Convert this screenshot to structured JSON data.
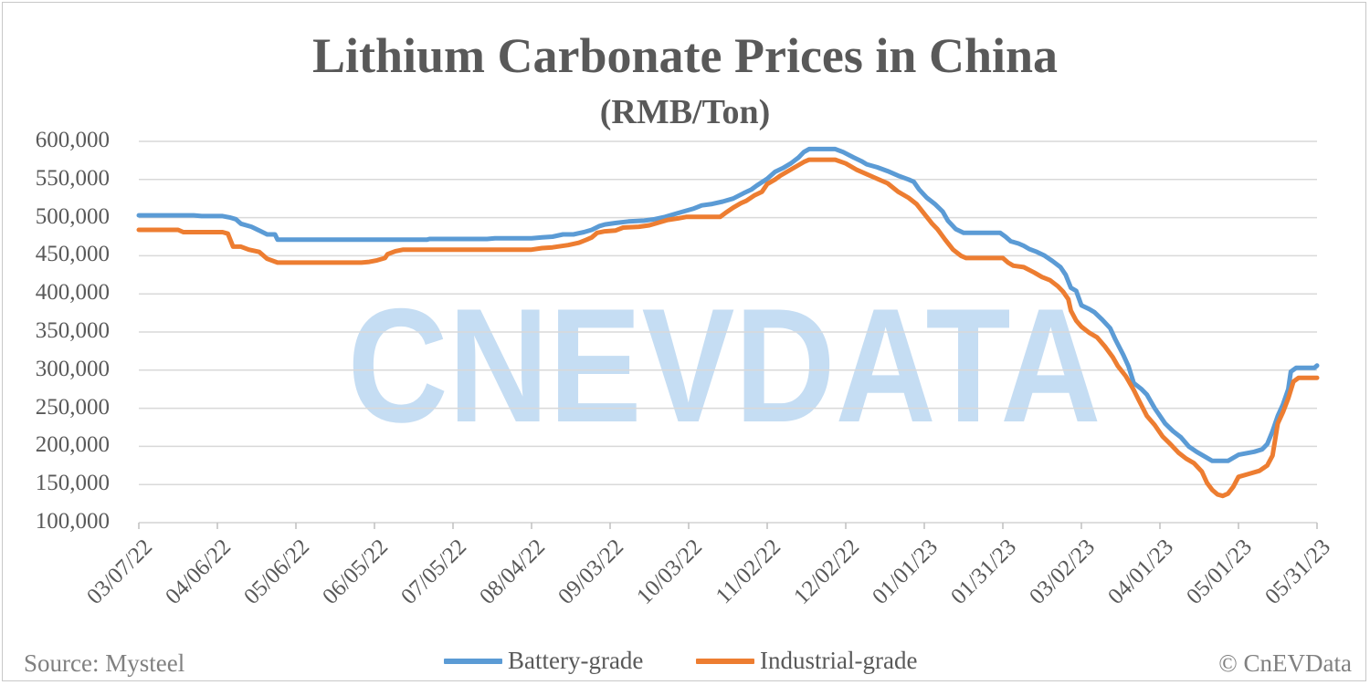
{
  "chart_data": {
    "type": "line",
    "title": "Lithium Carbonate Prices in China",
    "subtitle": "(RMB/Ton)",
    "y_ticks": [
      "600,000",
      "550,000",
      "500,000",
      "450,000",
      "400,000",
      "350,000",
      "300,000",
      "250,000",
      "200,000",
      "150,000",
      "100,000"
    ],
    "ylim": [
      100000,
      600000
    ],
    "x_ticks": [
      "03/07/22",
      "04/06/22",
      "05/06/22",
      "06/05/22",
      "07/05/22",
      "08/04/22",
      "09/03/22",
      "10/03/22",
      "11/02/22",
      "12/02/22",
      "01/01/23",
      "01/31/23",
      "03/02/23",
      "04/01/23",
      "05/01/23",
      "05/31/23"
    ],
    "xlim": [
      "03/07/22",
      "05/31/23"
    ],
    "grid": "horizontal",
    "legend_position": "bottom",
    "series": [
      {
        "name": "Battery-grade",
        "color": "#5b9bd5",
        "points": [
          [
            "03/07/22",
            503000
          ],
          [
            "03/28/22",
            503000
          ],
          [
            "03/31/22",
            502000
          ],
          [
            "04/08/22",
            502000
          ],
          [
            "04/11/22",
            500000
          ],
          [
            "04/13/22",
            498000
          ],
          [
            "04/15/22",
            492000
          ],
          [
            "04/19/22",
            488000
          ],
          [
            "04/22/22",
            483000
          ],
          [
            "04/25/22",
            478000
          ],
          [
            "04/28/22",
            478000
          ],
          [
            "04/29/22",
            471000
          ],
          [
            "06/25/22",
            471000
          ],
          [
            "06/26/22",
            472000
          ],
          [
            "07/18/22",
            472000
          ],
          [
            "07/21/22",
            473000
          ],
          [
            "08/04/22",
            473000
          ],
          [
            "08/08/22",
            474000
          ],
          [
            "08/12/22",
            475000
          ],
          [
            "08/16/22",
            478000
          ],
          [
            "08/20/22",
            478000
          ],
          [
            "08/24/22",
            481000
          ],
          [
            "08/27/22",
            484000
          ],
          [
            "08/30/22",
            489000
          ],
          [
            "09/01/22",
            491000
          ],
          [
            "09/05/22",
            493000
          ],
          [
            "09/10/22",
            495000
          ],
          [
            "09/16/22",
            496000
          ],
          [
            "09/20/22",
            498000
          ],
          [
            "09/24/22",
            501000
          ],
          [
            "09/28/22",
            505000
          ],
          [
            "10/01/22",
            508000
          ],
          [
            "10/05/22",
            512000
          ],
          [
            "10/08/22",
            516000
          ],
          [
            "10/12/22",
            518000
          ],
          [
            "10/16/22",
            521000
          ],
          [
            "10/20/22",
            525000
          ],
          [
            "10/24/22",
            532000
          ],
          [
            "10/27/22",
            537000
          ],
          [
            "10/29/22",
            542000
          ],
          [
            "11/02/22",
            551000
          ],
          [
            "11/05/22",
            560000
          ],
          [
            "11/08/22",
            565000
          ],
          [
            "11/11/22",
            571000
          ],
          [
            "11/14/22",
            579000
          ],
          [
            "11/16/22",
            586000
          ],
          [
            "11/18/22",
            590000
          ],
          [
            "11/28/22",
            590000
          ],
          [
            "12/01/22",
            586000
          ],
          [
            "12/05/22",
            579000
          ],
          [
            "12/08/22",
            574000
          ],
          [
            "12/10/22",
            570000
          ],
          [
            "12/14/22",
            566000
          ],
          [
            "12/18/22",
            561000
          ],
          [
            "12/22/22",
            555000
          ],
          [
            "12/26/22",
            550000
          ],
          [
            "12/28/22",
            547000
          ],
          [
            "12/30/22",
            537000
          ],
          [
            "01/02/23",
            526000
          ],
          [
            "01/05/23",
            518000
          ],
          [
            "01/08/23",
            508000
          ],
          [
            "01/10/23",
            496000
          ],
          [
            "01/13/23",
            485000
          ],
          [
            "01/16/23",
            480000
          ],
          [
            "01/30/23",
            480000
          ],
          [
            "02/01/23",
            475000
          ],
          [
            "02/03/23",
            469000
          ],
          [
            "02/06/23",
            466000
          ],
          [
            "02/08/23",
            463000
          ],
          [
            "02/10/23",
            459000
          ],
          [
            "02/13/23",
            455000
          ],
          [
            "02/16/23",
            450000
          ],
          [
            "02/19/23",
            443000
          ],
          [
            "02/22/23",
            435000
          ],
          [
            "02/24/23",
            425000
          ],
          [
            "02/26/23",
            408000
          ],
          [
            "02/28/23",
            404000
          ],
          [
            "03/02/23",
            385000
          ],
          [
            "03/05/23",
            380000
          ],
          [
            "03/07/23",
            376000
          ],
          [
            "03/10/23",
            366000
          ],
          [
            "03/13/23",
            355000
          ],
          [
            "03/15/23",
            340000
          ],
          [
            "03/18/23",
            320000
          ],
          [
            "03/20/23",
            305000
          ],
          [
            "03/22/23",
            283000
          ],
          [
            "03/25/23",
            275000
          ],
          [
            "03/27/23",
            268000
          ],
          [
            "03/30/23",
            250000
          ],
          [
            "04/03/23",
            230000
          ],
          [
            "04/06/23",
            220000
          ],
          [
            "04/09/23",
            212000
          ],
          [
            "04/12/23",
            200000
          ],
          [
            "04/15/23",
            193000
          ],
          [
            "04/18/23",
            187000
          ],
          [
            "04/21/23",
            181000
          ],
          [
            "04/27/23",
            181000
          ],
          [
            "05/01/23",
            189000
          ],
          [
            "05/04/23",
            191000
          ],
          [
            "05/07/23",
            193000
          ],
          [
            "05/10/23",
            196000
          ],
          [
            "05/12/23",
            203000
          ],
          [
            "05/14/23",
            220000
          ],
          [
            "05/16/23",
            240000
          ],
          [
            "05/18/23",
            255000
          ],
          [
            "05/20/23",
            275000
          ],
          [
            "05/21/23",
            298000
          ],
          [
            "05/23/23",
            303000
          ],
          [
            "05/30/23",
            303000
          ],
          [
            "05/31/23",
            306000
          ]
        ]
      },
      {
        "name": "Industrial-grade",
        "color": "#ed7d31",
        "points": [
          [
            "03/07/22",
            484000
          ],
          [
            "03/22/22",
            484000
          ],
          [
            "03/24/22",
            481000
          ],
          [
            "04/08/22",
            481000
          ],
          [
            "04/10/22",
            479000
          ],
          [
            "04/12/22",
            462000
          ],
          [
            "04/15/22",
            462000
          ],
          [
            "04/18/22",
            458000
          ],
          [
            "04/22/22",
            455000
          ],
          [
            "04/25/22",
            446000
          ],
          [
            "04/29/22",
            441000
          ],
          [
            "05/31/22",
            441000
          ],
          [
            "06/03/22",
            442000
          ],
          [
            "06/06/22",
            444000
          ],
          [
            "06/09/22",
            447000
          ],
          [
            "06/10/22",
            452000
          ],
          [
            "06/13/22",
            456000
          ],
          [
            "06/16/22",
            458000
          ],
          [
            "07/21/22",
            458000
          ],
          [
            "08/04/22",
            458000
          ],
          [
            "08/08/22",
            460000
          ],
          [
            "08/12/22",
            461000
          ],
          [
            "08/18/22",
            464000
          ],
          [
            "08/22/22",
            467000
          ],
          [
            "08/25/22",
            471000
          ],
          [
            "08/27/22",
            474000
          ],
          [
            "08/29/22",
            480000
          ],
          [
            "09/01/22",
            482000
          ],
          [
            "09/05/22",
            483000
          ],
          [
            "09/08/22",
            487000
          ],
          [
            "09/14/22",
            488000
          ],
          [
            "09/18/22",
            490000
          ],
          [
            "09/21/22",
            493000
          ],
          [
            "09/25/22",
            497000
          ],
          [
            "09/29/22",
            499000
          ],
          [
            "10/02/22",
            501000
          ],
          [
            "10/15/22",
            501000
          ],
          [
            "10/17/22",
            506000
          ],
          [
            "10/20/22",
            513000
          ],
          [
            "10/23/22",
            519000
          ],
          [
            "10/25/22",
            522000
          ],
          [
            "10/28/22",
            529000
          ],
          [
            "10/31/22",
            534000
          ],
          [
            "11/02/22",
            544000
          ],
          [
            "11/05/22",
            550000
          ],
          [
            "11/07/22",
            555000
          ],
          [
            "11/10/22",
            561000
          ],
          [
            "11/13/22",
            567000
          ],
          [
            "11/16/22",
            573000
          ],
          [
            "11/18/22",
            576000
          ],
          [
            "11/28/22",
            576000
          ],
          [
            "12/02/22",
            571000
          ],
          [
            "12/06/22",
            563000
          ],
          [
            "12/10/22",
            557000
          ],
          [
            "12/14/22",
            551000
          ],
          [
            "12/18/22",
            545000
          ],
          [
            "12/22/22",
            534000
          ],
          [
            "12/26/22",
            526000
          ],
          [
            "12/29/22",
            518000
          ],
          [
            "01/01/23",
            505000
          ],
          [
            "01/04/23",
            492000
          ],
          [
            "01/06/23",
            485000
          ],
          [
            "01/09/23",
            471000
          ],
          [
            "01/12/23",
            458000
          ],
          [
            "01/15/23",
            450000
          ],
          [
            "01/17/23",
            447000
          ],
          [
            "01/31/23",
            447000
          ],
          [
            "02/02/23",
            441000
          ],
          [
            "02/04/23",
            437000
          ],
          [
            "02/08/23",
            435000
          ],
          [
            "02/12/23",
            428000
          ],
          [
            "02/15/23",
            422000
          ],
          [
            "02/18/23",
            418000
          ],
          [
            "02/21/23",
            410000
          ],
          [
            "02/23/23",
            403000
          ],
          [
            "02/25/23",
            393000
          ],
          [
            "02/26/23",
            378000
          ],
          [
            "02/28/23",
            365000
          ],
          [
            "03/02/23",
            357000
          ],
          [
            "03/05/23",
            349000
          ],
          [
            "03/08/23",
            343000
          ],
          [
            "03/11/23",
            331000
          ],
          [
            "03/14/23",
            317000
          ],
          [
            "03/16/23",
            305000
          ],
          [
            "03/19/23",
            292000
          ],
          [
            "03/22/23",
            274000
          ],
          [
            "03/24/23",
            260000
          ],
          [
            "03/27/23",
            240000
          ],
          [
            "03/30/23",
            228000
          ],
          [
            "04/02/23",
            213000
          ],
          [
            "04/05/23",
            203000
          ],
          [
            "04/08/23",
            192000
          ],
          [
            "04/11/23",
            184000
          ],
          [
            "04/14/23",
            178000
          ],
          [
            "04/17/23",
            167000
          ],
          [
            "04/19/23",
            152000
          ],
          [
            "04/21/23",
            143000
          ],
          [
            "04/23/23",
            137000
          ],
          [
            "04/25/23",
            135000
          ],
          [
            "04/27/23",
            138000
          ],
          [
            "04/29/23",
            147000
          ],
          [
            "05/01/23",
            160000
          ],
          [
            "05/05/23",
            164000
          ],
          [
            "05/09/23",
            168000
          ],
          [
            "05/12/23",
            175000
          ],
          [
            "05/14/23",
            188000
          ],
          [
            "05/16/23",
            230000
          ],
          [
            "05/18/23",
            245000
          ],
          [
            "05/20/23",
            263000
          ],
          [
            "05/22/23",
            285000
          ],
          [
            "05/24/23",
            290000
          ],
          [
            "05/31/23",
            290000
          ]
        ]
      }
    ],
    "source": "Source: Mysteel",
    "copyright": "© CnEVData",
    "watermark": "CNEVDATA",
    "watermark_color": "#c5ddf3"
  }
}
